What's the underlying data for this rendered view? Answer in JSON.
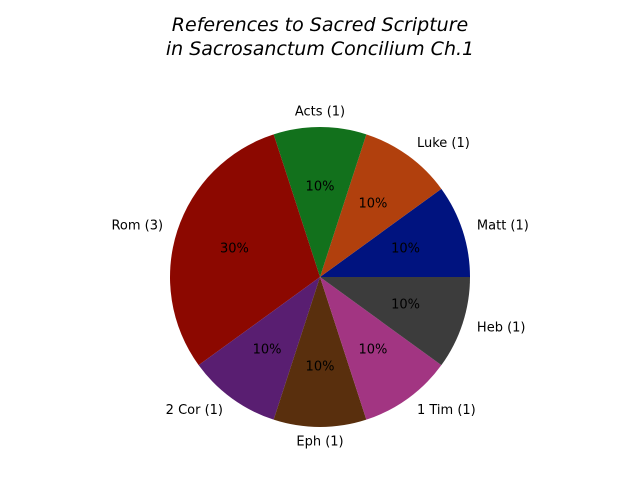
{
  "chart_data": {
    "type": "pie",
    "title_line1": "References to Sacred Scripture",
    "title_line2": "in Sacrosanctum Concilium Ch.1",
    "start_angle_deg": 0,
    "direction": "counterclockwise",
    "slices": [
      {
        "label": "Matt (1)",
        "value": 1,
        "pct": "10%",
        "color": "#00137F"
      },
      {
        "label": "Luke (1)",
        "value": 1,
        "pct": "10%",
        "color": "#B1400D"
      },
      {
        "label": "Acts (1)",
        "value": 1,
        "pct": "10%",
        "color": "#12711C"
      },
      {
        "label": "Rom (3)",
        "value": 3,
        "pct": "30%",
        "color": "#8C0800"
      },
      {
        "label": "2 Cor (1)",
        "value": 1,
        "pct": "10%",
        "color": "#591E71"
      },
      {
        "label": "Eph (1)",
        "value": 1,
        "pct": "10%",
        "color": "#592F0D"
      },
      {
        "label": "1 Tim (1)",
        "value": 1,
        "pct": "10%",
        "color": "#A23582"
      },
      {
        "label": "Heb (1)",
        "value": 1,
        "pct": "10%",
        "color": "#3C3C3C"
      }
    ]
  }
}
